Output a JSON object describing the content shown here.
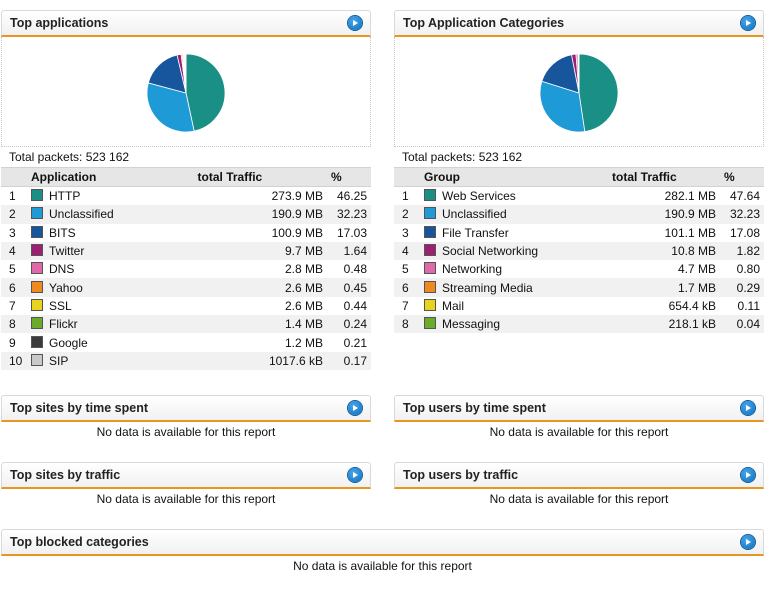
{
  "top_apps": {
    "title": "Top applications",
    "total_packets": "Total packets: 523 162",
    "headers": {
      "name": "Application",
      "traffic": "total Traffic",
      "pct": "%"
    },
    "rows": [
      {
        "idx": "1",
        "name": "HTTP",
        "traffic": "273.9 MB",
        "pct": "46.25",
        "color": "#1a8f86"
      },
      {
        "idx": "2",
        "name": "Unclassified",
        "traffic": "190.9 MB",
        "pct": "32.23",
        "color": "#1e9bd7"
      },
      {
        "idx": "3",
        "name": "BITS",
        "traffic": "100.9 MB",
        "pct": "17.03",
        "color": "#17559c"
      },
      {
        "idx": "4",
        "name": "Twitter",
        "traffic": "9.7 MB",
        "pct": "1.64",
        "color": "#9c1f72"
      },
      {
        "idx": "5",
        "name": "DNS",
        "traffic": "2.8 MB",
        "pct": "0.48",
        "color": "#e06aa8"
      },
      {
        "idx": "6",
        "name": "Yahoo",
        "traffic": "2.6 MB",
        "pct": "0.45",
        "color": "#ef8a1e"
      },
      {
        "idx": "7",
        "name": "SSL",
        "traffic": "2.6 MB",
        "pct": "0.44",
        "color": "#e6d51c"
      },
      {
        "idx": "8",
        "name": "Flickr",
        "traffic": "1.4 MB",
        "pct": "0.24",
        "color": "#6aab2c"
      },
      {
        "idx": "9",
        "name": "Google",
        "traffic": "1.2 MB",
        "pct": "0.21",
        "color": "#3b3b3b"
      },
      {
        "idx": "10",
        "name": "SIP",
        "traffic": "1017.6 kB",
        "pct": "0.17",
        "color": "#c9c9c9"
      }
    ]
  },
  "top_categories": {
    "title": "Top Application Categories",
    "total_packets": "Total packets: 523 162",
    "headers": {
      "name": "Group",
      "traffic": "total Traffic",
      "pct": "%"
    },
    "rows": [
      {
        "idx": "1",
        "name": "Web Services",
        "traffic": "282.1 MB",
        "pct": "47.64",
        "color": "#1a8f86"
      },
      {
        "idx": "2",
        "name": "Unclassified",
        "traffic": "190.9 MB",
        "pct": "32.23",
        "color": "#1e9bd7"
      },
      {
        "idx": "3",
        "name": "File Transfer",
        "traffic": "101.1 MB",
        "pct": "17.08",
        "color": "#17559c"
      },
      {
        "idx": "4",
        "name": "Social Networking",
        "traffic": "10.8 MB",
        "pct": "1.82",
        "color": "#9c1f72"
      },
      {
        "idx": "5",
        "name": "Networking",
        "traffic": "4.7 MB",
        "pct": "0.80",
        "color": "#e06aa8"
      },
      {
        "idx": "6",
        "name": "Streaming Media",
        "traffic": "1.7 MB",
        "pct": "0.29",
        "color": "#ef8a1e"
      },
      {
        "idx": "7",
        "name": "Mail",
        "traffic": "654.4 kB",
        "pct": "0.11",
        "color": "#e6d51c"
      },
      {
        "idx": "8",
        "name": "Messaging",
        "traffic": "218.1 kB",
        "pct": "0.04",
        "color": "#6aab2c"
      }
    ]
  },
  "sites_time": {
    "title": "Top sites by time spent",
    "message": "No data is available for this report"
  },
  "users_time": {
    "title": "Top users by time spent",
    "message": "No data is available for this report"
  },
  "sites_traffic": {
    "title": "Top sites by traffic",
    "message": "No data is available for this report"
  },
  "users_traffic": {
    "title": "Top users by traffic",
    "message": "No data is available for this report"
  },
  "blocked": {
    "title": "Top blocked categories",
    "message": "No data is available for this report"
  }
}
